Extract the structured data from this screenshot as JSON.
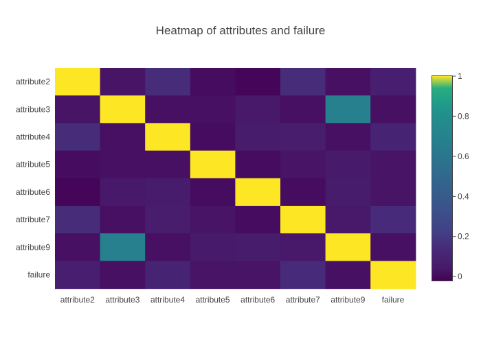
{
  "chart_data": {
    "type": "heatmap",
    "title": "Heatmap of attributes and failure",
    "xlabel": "",
    "ylabel": "",
    "x_categories": [
      "attribute2",
      "attribute3",
      "attribute4",
      "attribute5",
      "attribute6",
      "attribute7",
      "attribute9",
      "failure"
    ],
    "y_categories": [
      "attribute2",
      "attribute3",
      "attribute4",
      "attribute5",
      "attribute6",
      "attribute7",
      "attribute9",
      "failure"
    ],
    "values": [
      [
        1.0,
        0.03,
        0.15,
        0.01,
        -0.01,
        0.15,
        0.02,
        0.08
      ],
      [
        0.03,
        1.0,
        0.02,
        0.02,
        0.04,
        0.02,
        0.68,
        0.02
      ],
      [
        0.15,
        0.02,
        1.0,
        0.01,
        0.06,
        0.07,
        0.02,
        0.1
      ],
      [
        0.01,
        0.02,
        0.02,
        1.0,
        0.01,
        0.03,
        0.05,
        0.03
      ],
      [
        -0.01,
        0.04,
        0.06,
        0.01,
        1.0,
        0.01,
        0.06,
        0.03
      ],
      [
        0.15,
        0.02,
        0.07,
        0.03,
        0.01,
        1.0,
        0.04,
        0.14
      ],
      [
        0.02,
        0.68,
        0.02,
        0.05,
        0.06,
        0.04,
        1.0,
        0.02
      ],
      [
        0.08,
        0.02,
        0.1,
        0.03,
        0.03,
        0.14,
        0.02,
        1.0
      ]
    ],
    "colorscale": "Viridis",
    "zmin": -0.02,
    "zmax": 1.0,
    "colorbar": {
      "ticks": [
        0,
        0.2,
        0.4,
        0.6,
        0.8,
        1
      ],
      "tick_labels": [
        "0",
        "0.2",
        "0.4",
        "0.6",
        "0.8",
        "1"
      ]
    },
    "grid": false
  }
}
